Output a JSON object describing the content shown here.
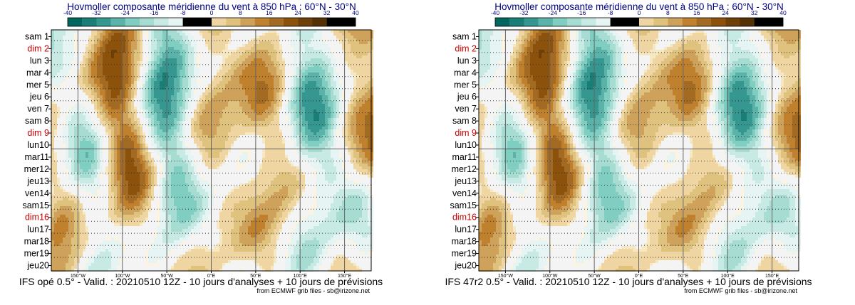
{
  "palette": {
    "neg": [
      "#01665e",
      "#1a7e76",
      "#35978f",
      "#5ab2a8",
      "#80cdc1",
      "#a7dcd3",
      "#c7eae5",
      "#e6f5f3"
    ],
    "pos": [
      "#fcf3e0",
      "#f6e8c3",
      "#eed5a2",
      "#dfc27d",
      "#cfa25c",
      "#bf812d",
      "#a26a23",
      "#8c510a",
      "#6f3f08",
      "#543005"
    ],
    "title": "#000080",
    "weekend": "#cc0000",
    "plot_bg": "#f4f4f4"
  },
  "chart_data": [
    {
      "type": "heatmap",
      "title": "Hovmoller composante méridienne du vent à 850 hPa : 60°N - 30°N",
      "footer": "IFS opé 0.5° - Valid. : 20210510 12Z - 10 jours d'analyses + 10 jours de prévisions",
      "credit": "from ECMWF grib files - sb@irizone.net",
      "colorbar": {
        "ticks": [
          "-40",
          "-32",
          "-24",
          "-16",
          "-8",
          "0",
          "8",
          "16",
          "24",
          "32",
          "40"
        ],
        "range": [
          -40,
          40
        ],
        "step": 4
      },
      "xaxis": {
        "range": [
          -180,
          180
        ],
        "ticks": [
          {
            "v": -150,
            "label": "150°W"
          },
          {
            "v": -100,
            "label": "100°W"
          },
          {
            "v": -50,
            "label": "50°W"
          },
          {
            "v": 0,
            "label": "0°E"
          },
          {
            "v": 50,
            "label": "50°E"
          },
          {
            "v": 100,
            "label": "100°E"
          },
          {
            "v": 150,
            "label": "150°E"
          }
        ]
      },
      "days": [
        "sam 1",
        "dim 2",
        "lun 3",
        "mar 4",
        "mer 5",
        "jeu 6",
        "ven 7",
        "sam 8",
        "dim 9",
        "lun10",
        "mar11",
        "mer12",
        "jeu13",
        "ven14",
        "sam15",
        "dim16",
        "lun17",
        "mar18",
        "mer19",
        "jeu20"
      ],
      "weekend_days": [
        "dim 2",
        "dim 9",
        "dim16"
      ],
      "analysis_forecast_split_after": "lun10",
      "seed": 7
    },
    {
      "type": "heatmap",
      "title": "Hovmoller composante méridienne du vent à 850 hPa : 60°N - 30°N",
      "footer": "IFS 47r2 0.5° - Valid. : 20210510 12Z - 10 jours d'analyses + 10 jours de prévisions",
      "credit": "from ECMWF grib files - sb@irizone.net",
      "colorbar": {
        "ticks": [
          "-40",
          "-32",
          "-24",
          "-16",
          "-8",
          "0",
          "8",
          "16",
          "24",
          "32",
          "40"
        ],
        "range": [
          -40,
          40
        ],
        "step": 4
      },
      "xaxis": {
        "range": [
          -180,
          180
        ],
        "ticks": [
          {
            "v": -150,
            "label": "150°W"
          },
          {
            "v": -100,
            "label": "100°W"
          },
          {
            "v": -50,
            "label": "50°W"
          },
          {
            "v": 0,
            "label": "0°E"
          },
          {
            "v": 50,
            "label": "50°E"
          },
          {
            "v": 100,
            "label": "100°E"
          },
          {
            "v": 150,
            "label": "150°E"
          }
        ]
      },
      "days": [
        "sam 1",
        "dim 2",
        "lun 3",
        "mar 4",
        "mer 5",
        "jeu 6",
        "ven 7",
        "sam 8",
        "dim 9",
        "lun10",
        "mar11",
        "mer12",
        "jeu13",
        "ven14",
        "sam15",
        "dim16",
        "lun17",
        "mar18",
        "mer19",
        "jeu20"
      ],
      "weekend_days": [
        "dim 2",
        "dim 9",
        "dim16"
      ],
      "analysis_forecast_split_after": "lun10",
      "seed": 7
    }
  ]
}
